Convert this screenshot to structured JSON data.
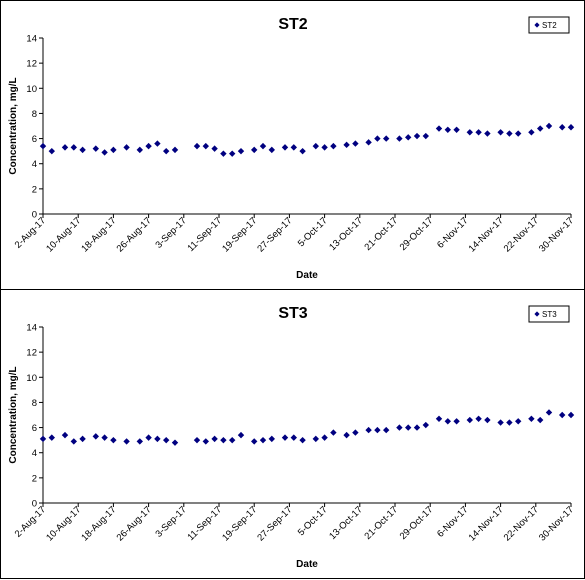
{
  "charts": [
    {
      "type": "scatter",
      "title": "ST2",
      "xlabel": "Date",
      "ylabel": "Concentration, mg/L",
      "ylim": [
        0,
        14
      ],
      "yticks": [
        0,
        2,
        4,
        6,
        8,
        10,
        12,
        14
      ],
      "xlim": [
        "2017-08-02",
        "2017-11-30"
      ],
      "xtick_labels": [
        "2-Aug-17",
        "10-Aug-17",
        "18-Aug-17",
        "26-Aug-17",
        "3-Sep-17",
        "11-Sep-17",
        "19-Sep-17",
        "27-Sep-17",
        "5-Oct-17",
        "13-Oct-17",
        "21-Oct-17",
        "29-Oct-17",
        "6-Nov-17",
        "14-Nov-17",
        "22-Nov-17",
        "30-Nov-17"
      ],
      "legend_position": "top-right",
      "marker_color": "#000080",
      "series": [
        {
          "name": "ST2",
          "x": [
            "2017-08-02",
            "2017-08-04",
            "2017-08-07",
            "2017-08-09",
            "2017-08-11",
            "2017-08-14",
            "2017-08-16",
            "2017-08-18",
            "2017-08-21",
            "2017-08-24",
            "2017-08-26",
            "2017-08-28",
            "2017-08-30",
            "2017-09-01",
            "2017-09-06",
            "2017-09-08",
            "2017-09-10",
            "2017-09-12",
            "2017-09-14",
            "2017-09-16",
            "2017-09-19",
            "2017-09-21",
            "2017-09-23",
            "2017-09-26",
            "2017-09-28",
            "2017-09-30",
            "2017-10-03",
            "2017-10-05",
            "2017-10-07",
            "2017-10-10",
            "2017-10-12",
            "2017-10-15",
            "2017-10-17",
            "2017-10-19",
            "2017-10-22",
            "2017-10-24",
            "2017-10-26",
            "2017-10-28",
            "2017-10-31",
            "2017-11-02",
            "2017-11-04",
            "2017-11-07",
            "2017-11-09",
            "2017-11-11",
            "2017-11-14",
            "2017-11-16",
            "2017-11-18",
            "2017-11-21",
            "2017-11-23",
            "2017-11-25",
            "2017-11-28",
            "2017-11-30"
          ],
          "y": [
            5.4,
            5.0,
            5.3,
            5.3,
            5.1,
            5.2,
            4.9,
            5.1,
            5.3,
            5.1,
            5.4,
            5.6,
            5.0,
            5.1,
            5.4,
            5.4,
            5.2,
            4.8,
            4.8,
            5.0,
            5.1,
            5.4,
            5.1,
            5.3,
            5.3,
            5.0,
            5.4,
            5.3,
            5.4,
            5.5,
            5.6,
            5.7,
            6.0,
            6.0,
            6.0,
            6.1,
            6.2,
            6.2,
            6.8,
            6.7,
            6.7,
            6.5,
            6.5,
            6.4,
            6.5,
            6.4,
            6.4,
            6.5,
            6.8,
            7.0,
            6.9,
            6.9
          ]
        }
      ]
    },
    {
      "type": "scatter",
      "title": "ST3",
      "xlabel": "Date",
      "ylabel": "Concentration, mg/L",
      "ylim": [
        0,
        14
      ],
      "yticks": [
        0,
        2,
        4,
        6,
        8,
        10,
        12,
        14
      ],
      "xlim": [
        "2017-08-02",
        "2017-11-30"
      ],
      "xtick_labels": [
        "2-Aug-17",
        "10-Aug-17",
        "18-Aug-17",
        "26-Aug-17",
        "3-Sep-17",
        "11-Sep-17",
        "19-Sep-17",
        "27-Sep-17",
        "5-Oct-17",
        "13-Oct-17",
        "21-Oct-17",
        "29-Oct-17",
        "6-Nov-17",
        "14-Nov-17",
        "22-Nov-17",
        "30-Nov-17"
      ],
      "legend_position": "top-right",
      "marker_color": "#000080",
      "series": [
        {
          "name": "ST3",
          "x": [
            "2017-08-02",
            "2017-08-04",
            "2017-08-07",
            "2017-08-09",
            "2017-08-11",
            "2017-08-14",
            "2017-08-16",
            "2017-08-18",
            "2017-08-21",
            "2017-08-24",
            "2017-08-26",
            "2017-08-28",
            "2017-08-30",
            "2017-09-01",
            "2017-09-06",
            "2017-09-08",
            "2017-09-10",
            "2017-09-12",
            "2017-09-14",
            "2017-09-16",
            "2017-09-19",
            "2017-09-21",
            "2017-09-23",
            "2017-09-26",
            "2017-09-28",
            "2017-09-30",
            "2017-10-03",
            "2017-10-05",
            "2017-10-07",
            "2017-10-10",
            "2017-10-12",
            "2017-10-15",
            "2017-10-17",
            "2017-10-19",
            "2017-10-22",
            "2017-10-24",
            "2017-10-26",
            "2017-10-28",
            "2017-10-31",
            "2017-11-02",
            "2017-11-04",
            "2017-11-07",
            "2017-11-09",
            "2017-11-11",
            "2017-11-14",
            "2017-11-16",
            "2017-11-18",
            "2017-11-21",
            "2017-11-23",
            "2017-11-25",
            "2017-11-28",
            "2017-11-30"
          ],
          "y": [
            5.1,
            5.2,
            5.4,
            4.9,
            5.1,
            5.3,
            5.2,
            5.0,
            4.9,
            4.9,
            5.2,
            5.1,
            5.0,
            4.8,
            5.0,
            4.9,
            5.1,
            5.0,
            5.0,
            5.4,
            4.9,
            5.0,
            5.1,
            5.2,
            5.2,
            5.0,
            5.1,
            5.2,
            5.6,
            5.4,
            5.6,
            5.8,
            5.8,
            5.8,
            6.0,
            6.0,
            6.0,
            6.2,
            6.7,
            6.5,
            6.5,
            6.6,
            6.7,
            6.6,
            6.4,
            6.4,
            6.5,
            6.7,
            6.6,
            7.2,
            7.0,
            7.0
          ]
        }
      ]
    }
  ]
}
